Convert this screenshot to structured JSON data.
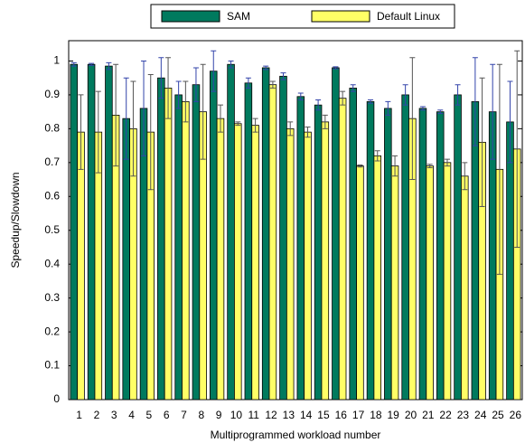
{
  "chart_data": {
    "type": "bar",
    "y_label": "Speedup/Slowdown",
    "x_label": "Multiprogrammed workload number",
    "categories": [
      "1",
      "2",
      "3",
      "4",
      "5",
      "6",
      "7",
      "8",
      "9",
      "10",
      "11",
      "12",
      "13",
      "14",
      "15",
      "16",
      "17",
      "18",
      "19",
      "20",
      "21",
      "22",
      "23",
      "24",
      "25",
      "26"
    ],
    "series": [
      {
        "name": "SAM",
        "color": "#007a5e",
        "values": [
          0.99,
          0.99,
          0.985,
          0.83,
          0.86,
          0.95,
          0.9,
          0.93,
          0.97,
          0.99,
          0.935,
          0.98,
          0.955,
          0.895,
          0.87,
          0.98,
          0.92,
          0.88,
          0.86,
          0.9,
          0.86,
          0.85,
          0.9,
          0.88,
          0.85,
          0.82
        ],
        "errors": [
          0.005,
          0.003,
          0.01,
          0.12,
          0.14,
          0.06,
          0.04,
          0.05,
          0.06,
          0.01,
          0.015,
          0.005,
          0.01,
          0.01,
          0.015,
          0.003,
          0.01,
          0.005,
          0.02,
          0.03,
          0.005,
          0.005,
          0.03,
          0.13,
          0.14,
          0.12
        ]
      },
      {
        "name": "Default Linux",
        "color": "#ffff66",
        "values": [
          0.79,
          0.79,
          0.84,
          0.8,
          0.79,
          0.92,
          0.88,
          0.85,
          0.83,
          0.815,
          0.81,
          0.93,
          0.8,
          0.79,
          0.82,
          0.89,
          0.69,
          0.72,
          0.69,
          0.83,
          0.69,
          0.7,
          0.66,
          0.76,
          0.68,
          0.74
        ],
        "errors": [
          0.11,
          0.12,
          0.15,
          0.14,
          0.17,
          0.09,
          0.06,
          0.14,
          0.04,
          0.005,
          0.02,
          0.01,
          0.02,
          0.015,
          0.02,
          0.02,
          0.003,
          0.015,
          0.03,
          0.18,
          0.005,
          0.01,
          0.04,
          0.19,
          0.31,
          0.29
        ]
      }
    ],
    "ylim": [
      0,
      1.06
    ],
    "yticks": [
      0,
      0.1,
      0.2,
      0.3,
      0.4,
      0.5,
      0.6,
      0.7,
      0.8,
      0.9,
      1
    ],
    "grid": false,
    "legend": "top"
  }
}
